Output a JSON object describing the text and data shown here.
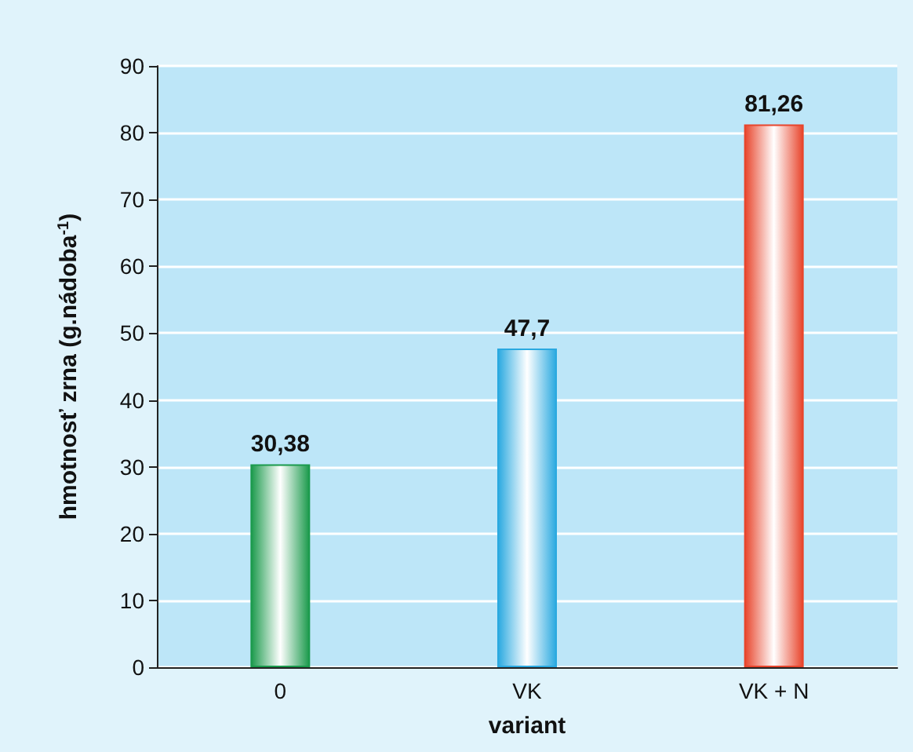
{
  "chart_data": {
    "type": "bar",
    "xlabel": "variant",
    "ylabel": "hmotnosť zrna (g.nádoba$^{-1}$)",
    "categories": [
      "0",
      "VK",
      "VK + N"
    ],
    "values": [
      30.38,
      47.7,
      81.26
    ],
    "colors": [
      "#1b9a4c",
      "#2aa9e0",
      "#e8452c"
    ],
    "value_labels": [
      "30,38",
      "47,7",
      "81,26"
    ],
    "ylim": [
      0,
      90
    ],
    "yticks": [
      0,
      10,
      20,
      30,
      40,
      50,
      60,
      70,
      80,
      90
    ],
    "grid": "y"
  }
}
